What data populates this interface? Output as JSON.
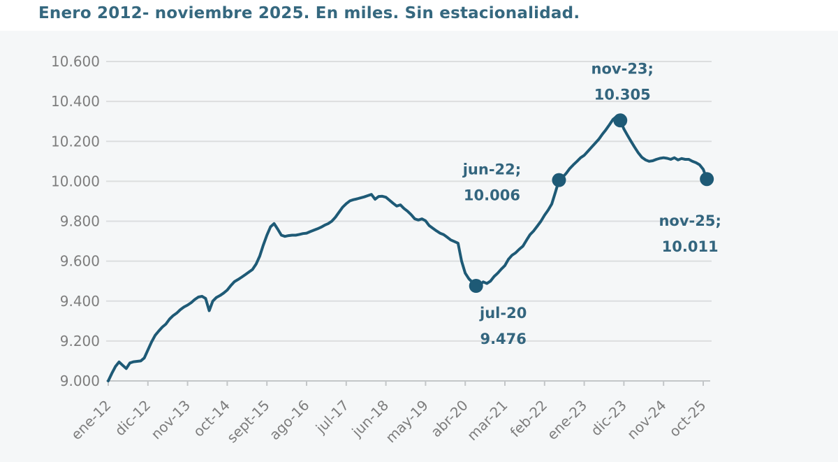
{
  "title": "Enero 2012- noviembre 2025. En miles. Sin estacionalidad.",
  "colors": {
    "line": "#1e5a76",
    "marker": "#1e5a76",
    "title_text": "#35687f",
    "annotation_text": "#33657e",
    "axis_label": "#7d7d7d",
    "gridline": "#dcdedf",
    "axis_line": "#c3c6c8",
    "panel_background": "#f5f7f8"
  },
  "chart_data": {
    "type": "line",
    "title": "Enero 2012- noviembre 2025. En miles. Sin estacionalidad.",
    "xlabel": "",
    "ylabel": "",
    "ylim": [
      9000,
      10600
    ],
    "y_tick_step": 200,
    "grid": true,
    "legend": false,
    "y_tick_labels": [
      "10.600",
      "10.400",
      "10.200",
      "10.000",
      "9.800",
      "9.600",
      "9.400",
      "9.200",
      "9.000"
    ],
    "x_tick_labels": [
      "ene-12",
      "dic-12",
      "nov-13",
      "oct-14",
      "sept-15",
      "ago-16",
      "jul-17",
      "jun-18",
      "may-19",
      "abr-20",
      "mar-21",
      "feb-22",
      "ene-23",
      "dic-23",
      "nov-24",
      "oct-25"
    ],
    "months_between_ticks": 11,
    "start_month": "ene-12",
    "end_month": "nov-25",
    "values": [
      9000,
      9038,
      9072,
      9095,
      9078,
      9062,
      9090,
      9096,
      9098,
      9100,
      9115,
      9155,
      9195,
      9228,
      9250,
      9270,
      9285,
      9310,
      9327,
      9340,
      9357,
      9370,
      9380,
      9392,
      9408,
      9420,
      9424,
      9413,
      9352,
      9400,
      9418,
      9428,
      9440,
      9455,
      9478,
      9497,
      9508,
      9520,
      9532,
      9545,
      9558,
      9585,
      9625,
      9680,
      9730,
      9772,
      9788,
      9760,
      9730,
      9724,
      9728,
      9730,
      9730,
      9734,
      9738,
      9740,
      9748,
      9755,
      9762,
      9770,
      9780,
      9788,
      9800,
      9820,
      9845,
      9870,
      9888,
      9902,
      9908,
      9912,
      9917,
      9922,
      9928,
      9934,
      9910,
      9924,
      9925,
      9920,
      9905,
      9890,
      9876,
      9882,
      9864,
      9850,
      9833,
      9812,
      9806,
      9812,
      9802,
      9778,
      9765,
      9752,
      9740,
      9733,
      9720,
      9706,
      9698,
      9690,
      9600,
      9540,
      9512,
      9494,
      9476,
      9481,
      9496,
      9488,
      9500,
      9523,
      9540,
      9560,
      9578,
      9610,
      9630,
      9642,
      9660,
      9675,
      9705,
      9733,
      9752,
      9776,
      9800,
      9830,
      9856,
      9886,
      9945,
      10006,
      10020,
      10040,
      10064,
      10083,
      10100,
      10118,
      10130,
      10150,
      10170,
      10190,
      10210,
      10235,
      10258,
      10283,
      10310,
      10325,
      10305,
      10262,
      10230,
      10200,
      10170,
      10142,
      10120,
      10107,
      10100,
      10103,
      10110,
      10115,
      10118,
      10115,
      10110,
      10118,
      10107,
      10114,
      10110,
      10110,
      10100,
      10093,
      10083,
      10060,
      10011
    ],
    "annotations": [
      {
        "line1": "nov-23;",
        "line2": "10.305",
        "month_index": 142,
        "value": 10305
      },
      {
        "line1": "jun-22;",
        "line2": "10.006",
        "month_index": 125,
        "value": 10006
      },
      {
        "line1": "jul-20",
        "line2": "9.476",
        "month_index": 102,
        "value": 9476
      },
      {
        "line1": "nov-25;",
        "line2": "10.011",
        "month_index": 166,
        "value": 10011
      }
    ]
  }
}
